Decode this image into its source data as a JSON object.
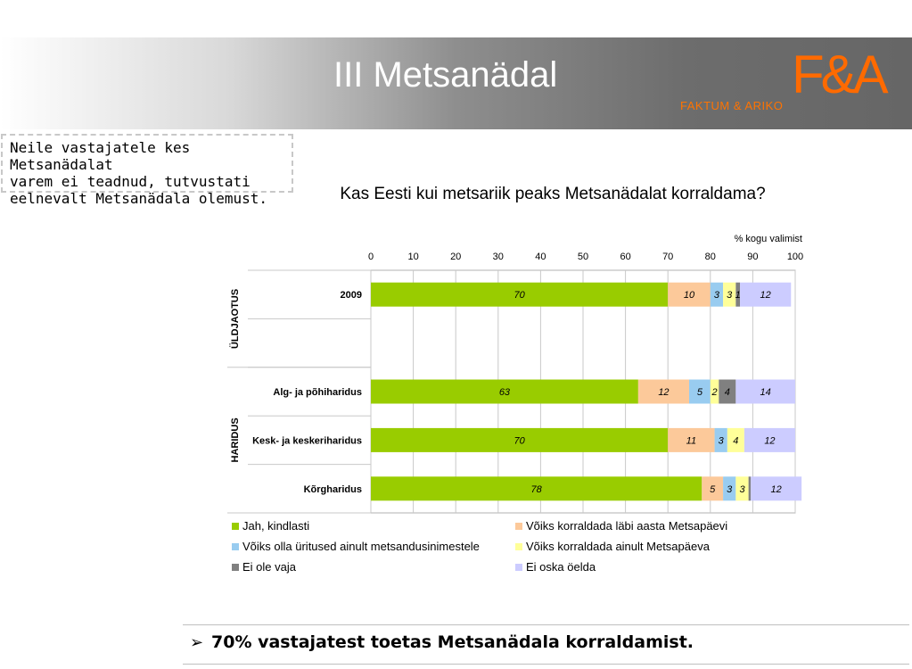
{
  "header": {
    "title": "III Metsanädal",
    "brand_name": "FAKTUM & ARIKO",
    "brand_logo": "F&A"
  },
  "note": {
    "text": "Neile vastajatele kes Metsanädalat\nvarem  ei teadnud, tutvustati\neelnevalt Metsanädala olemust."
  },
  "chart_data": {
    "type": "bar",
    "orientation": "horizontal",
    "stacked": true,
    "title": "Kas Eesti kui metsariik peaks Metsanädalat korraldama?",
    "unit_label": "% kogu valimist",
    "xlim": [
      0,
      100
    ],
    "ticks": [
      0,
      10,
      20,
      30,
      40,
      50,
      60,
      70,
      80,
      90,
      100
    ],
    "groups": [
      {
        "label": "ÜLDJAOTUS",
        "rows": [
          0,
          1
        ]
      },
      {
        "label": "HARIDUS",
        "rows": [
          2,
          3,
          4
        ]
      }
    ],
    "categories": [
      "2009",
      "",
      "Alg- ja põhiharidus",
      "Kesk- ja keskeriharidus",
      "Kõrgharidus"
    ],
    "series": [
      {
        "name": "Jah, kindlasti",
        "color": "#99cc00",
        "values": [
          70,
          null,
          63,
          70,
          78
        ]
      },
      {
        "name": "Võiks korraldada läbi aasta Metsapäevi",
        "color": "#fcc99a",
        "values": [
          10,
          null,
          12,
          11,
          5
        ]
      },
      {
        "name": "Võiks olla üritused ainult metsandusinimestele",
        "color": "#99ccf0",
        "values": [
          3,
          null,
          5,
          3,
          3
        ]
      },
      {
        "name": "Võiks korraldada ainult Metsapäeva",
        "color": "#ffff99",
        "values": [
          3,
          null,
          2,
          4,
          3
        ]
      },
      {
        "name": "Ei ole vaja",
        "color": "#808080",
        "values": [
          1,
          null,
          4,
          0,
          0.5
        ]
      },
      {
        "name": "Ei oska öelda",
        "color": "#ccccff",
        "values": [
          12,
          null,
          14,
          12,
          12
        ]
      }
    ],
    "data_labels": [
      [
        "70",
        "10",
        "3",
        "3",
        "1",
        "12"
      ],
      [
        "",
        "",
        "",
        "",
        "",
        ""
      ],
      [
        "63",
        "12",
        "5",
        "2",
        "4",
        "14"
      ],
      [
        "70",
        "11",
        "3",
        "4",
        "",
        "12"
      ],
      [
        "78",
        "5",
        "3",
        "3",
        "",
        "12"
      ]
    ],
    "legend_position": "bottom",
    "grid": true
  },
  "footer": {
    "arrow": "➢",
    "text": "70% vastajatest toetas Metsanädala korraldamist."
  }
}
